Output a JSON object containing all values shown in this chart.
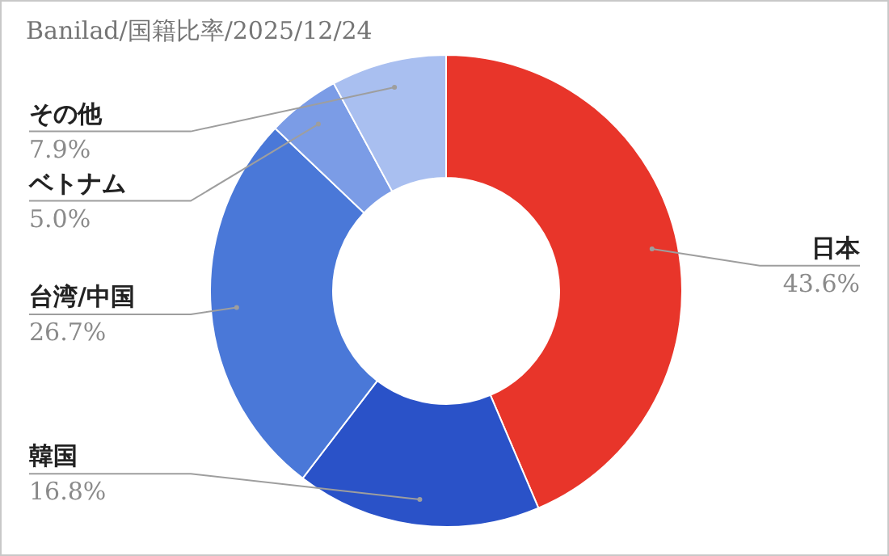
{
  "chart_data": {
    "type": "donut",
    "title": "Banilad/国籍比率/2025/12/24",
    "categories": [
      "日本",
      "韓国",
      "台湾/中国",
      "ベトナム",
      "その他"
    ],
    "values": [
      43.6,
      16.8,
      26.7,
      5.0,
      7.9
    ],
    "colors": [
      "#e8352a",
      "#2a52c8",
      "#4a78d8",
      "#7b9ce6",
      "#a9bff0"
    ],
    "value_labels": [
      "43.6%",
      "16.8%",
      "26.7%",
      "5.0%",
      "7.9%"
    ]
  }
}
